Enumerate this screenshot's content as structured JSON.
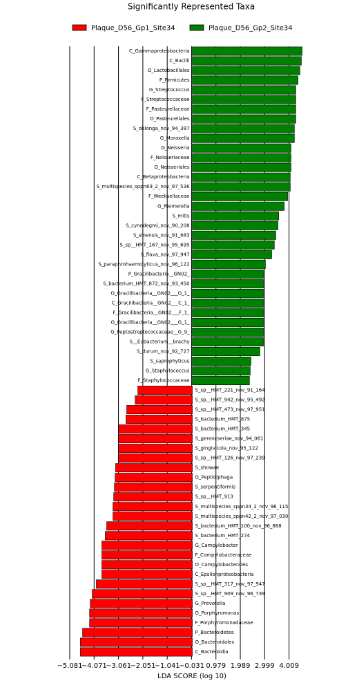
{
  "chart_data": {
    "type": "bar",
    "orientation": "horizontal",
    "title": "Significantly Represented Taxa",
    "x_label": "LDA SCORE (log 10)",
    "categories": [
      "C_Gammaproteobacteria",
      "C_Bacilli",
      "O_Lactobacillales",
      "P_Firmicutes",
      "G_Streptococcus",
      "F_Streptococcaceae",
      "F_Pasteurellaceae",
      "O_Pasteurellales",
      "S_oblonga_nov_94_387",
      "G_Moraxella",
      "G_Neisseria",
      "F_Neisseriaceae",
      "O_Neisseriales",
      "C_Betaproteobacteria",
      "S_multispecies_sppn69_2_nov_97_536",
      "F_Weeksellaceae",
      "G_Riemerella",
      "S_mitis",
      "S_cynodegmi_nov_90_208",
      "S_sinensis_nov_91_683",
      "S_sp__HMT_167_nov_95_695",
      "S_flava_nov_97_947",
      "S_paraphrohaemolyticus_nov_96_122",
      "P_Gracilibacteria__GN02_",
      "S_bacterium_HMT_872_nov_93_450",
      "O_Gracilibacteria__GN02___O_1_",
      "C_Gracilibacteria__GN02___C_1_",
      "F_Gracilibacteria__GN02___F_1_",
      "G_Gracilibacteria__GN02___G_1_",
      "G_Peptostreptococcaceae__G_9_",
      "S__Eubacterium__brachy",
      "S_durum_nov_92_727",
      "S_saprophyticus",
      "G_Staphylococcus",
      "F_Staphylococcaceae",
      "S_sp__HMT_221_nov_91_164",
      "S_sp__HMT_942_nov_95_492",
      "S_sp__HMT_473_nov_97_951",
      "S_bacterium_HMT_875",
      "S_bacterium_HMT_345",
      "S_gerencseriae_nov_94_061",
      "S_gingivicola_nov_95_122",
      "S_sp__HMT_126_nov_97_239",
      "S_showae",
      "G_Peptidiphaga",
      "S_serpentiformis",
      "S_sp__HMT_913",
      "S_multispecies_sppn34_2_nov_96_115",
      "S_multispecies_sppn42_2_nov_97_030",
      "S_bacterium_HMT_100_nov_96_868",
      "S_bacterium_HMT_274",
      "G_Campylobacter",
      "F_Campylobacteraceae",
      "O_Campylobacterales",
      "C_Epsilonproteobacteria",
      "S_sp__HMT_317_nov_97_947",
      "S_sp__HMT_909_nov_96_739",
      "G_Prevotella",
      "G_Porphyromonas",
      "F_Porphyromonadaceae",
      "P_Bacteroidetes",
      "O_Bacteroidales",
      "C_Bacteroidia"
    ],
    "series": [
      {
        "name": "Plaque_D56_Gp1_Site34",
        "color": "#ff0000",
        "values": [
          null,
          null,
          null,
          null,
          null,
          null,
          null,
          null,
          null,
          null,
          null,
          null,
          null,
          null,
          null,
          null,
          null,
          null,
          null,
          null,
          null,
          null,
          null,
          null,
          null,
          null,
          null,
          null,
          null,
          null,
          null,
          null,
          null,
          null,
          null,
          -2.26,
          -2.37,
          -2.72,
          -2.75,
          -3.06,
          -3.06,
          -3.06,
          -3.06,
          -3.18,
          -3.2,
          -3.23,
          -3.26,
          -3.29,
          -3.29,
          -3.55,
          -3.61,
          -3.75,
          -3.75,
          -3.75,
          -3.75,
          -3.98,
          -4.15,
          -4.23,
          -4.26,
          -4.26,
          -4.55,
          -4.64,
          -4.64
        ]
      },
      {
        "name": "Plaque_D56_Gp2_Site34",
        "color": "#008000",
        "values": [
          4.55,
          4.52,
          4.46,
          4.38,
          4.29,
          4.29,
          4.29,
          4.29,
          4.23,
          4.23,
          4.09,
          4.09,
          4.09,
          4.06,
          4.06,
          3.95,
          3.81,
          3.58,
          3.55,
          3.46,
          3.4,
          3.29,
          3.03,
          2.95,
          2.95,
          2.95,
          2.95,
          2.95,
          2.95,
          2.95,
          2.95,
          2.8,
          2.43,
          2.4,
          2.37,
          null,
          null,
          null,
          null,
          null,
          null,
          null,
          null,
          null,
          null,
          null,
          null,
          null,
          null,
          null,
          null,
          null,
          null,
          null,
          null,
          null,
          null,
          null,
          null,
          null,
          null,
          null,
          null
        ]
      }
    ],
    "xlim": [
      -5.081,
      5.05
    ],
    "xticks": [
      {
        "value": -5.081,
        "label": "−5.081"
      },
      {
        "value": -4.071,
        "label": "−4.071"
      },
      {
        "value": -3.061,
        "label": "−3.061"
      },
      {
        "value": -2.051,
        "label": "−2.051"
      },
      {
        "value": -1.041,
        "label": "−1.041"
      },
      {
        "value": -0.031,
        "label": "−0.031"
      },
      0.979,
      1.989,
      2.999,
      4.009
    ],
    "grid": true,
    "legend_position": "top"
  }
}
